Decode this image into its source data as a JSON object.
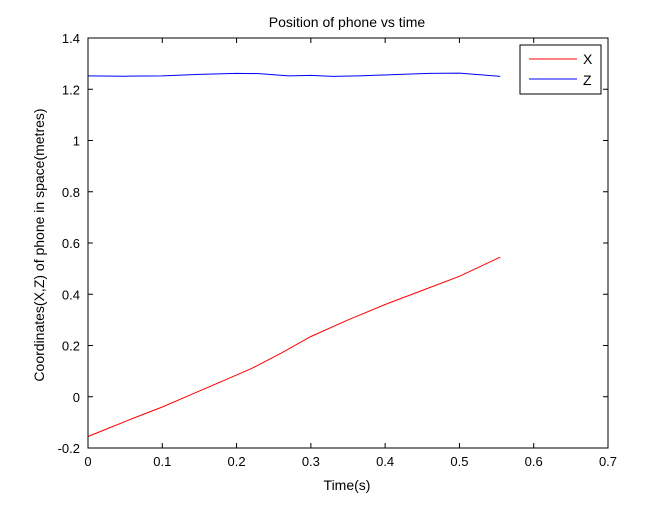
{
  "chart_data": {
    "type": "line",
    "title": "Position of phone vs time",
    "xlabel": "Time(s)",
    "ylabel": "Coordinates(X,Z) of phone in space(metres)",
    "xlim": [
      0,
      0.7
    ],
    "ylim": [
      -0.2,
      1.4
    ],
    "xticks": [
      0,
      0.1,
      0.2,
      0.3,
      0.4,
      0.5,
      0.6,
      0.7
    ],
    "xtick_labels": [
      "0",
      "0.1",
      "0.2",
      "0.3",
      "0.4",
      "0.5",
      "0.6",
      "0.7"
    ],
    "yticks": [
      -0.2,
      0,
      0.2,
      0.4,
      0.6,
      0.8,
      1,
      1.2,
      1.4
    ],
    "ytick_labels": [
      "-0.2",
      "0",
      "0.2",
      "0.4",
      "0.6",
      "0.8",
      "1",
      "1.2",
      "1.4"
    ],
    "grid": false,
    "legend_position": "top-right",
    "series": [
      {
        "name": "X",
        "color": "#ff0000",
        "x": [
          0,
          0.03,
          0.06,
          0.1,
          0.14,
          0.18,
          0.22,
          0.26,
          0.3,
          0.35,
          0.4,
          0.45,
          0.5,
          0.555
        ],
        "y": [
          -0.155,
          -0.12,
          -0.085,
          -0.04,
          0.01,
          0.06,
          0.11,
          0.17,
          0.235,
          0.3,
          0.36,
          0.415,
          0.47,
          0.545
        ]
      },
      {
        "name": "Z",
        "color": "#0000ff",
        "x": [
          0,
          0.05,
          0.1,
          0.15,
          0.2,
          0.23,
          0.27,
          0.3,
          0.33,
          0.37,
          0.42,
          0.46,
          0.5,
          0.53,
          0.555
        ],
        "y": [
          1.252,
          1.251,
          1.252,
          1.258,
          1.262,
          1.261,
          1.252,
          1.254,
          1.25,
          1.253,
          1.258,
          1.262,
          1.263,
          1.256,
          1.25
        ]
      }
    ]
  }
}
